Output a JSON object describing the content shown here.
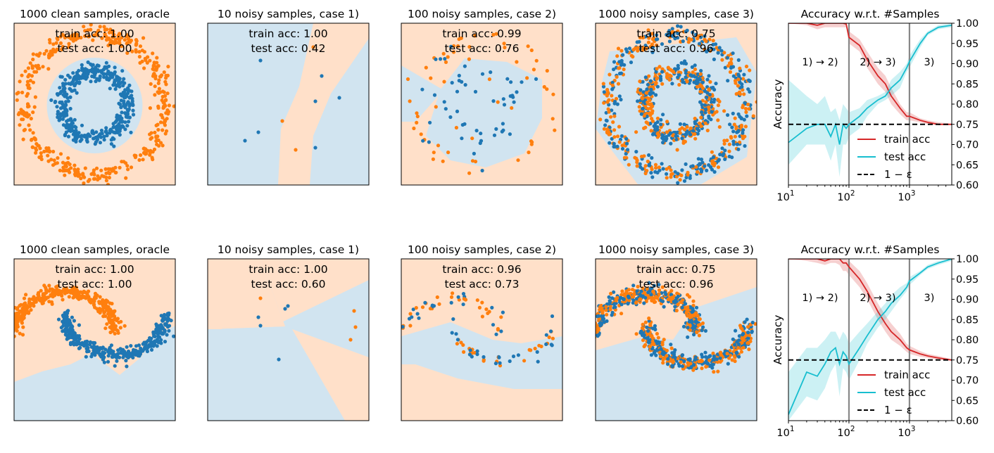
{
  "figure": {
    "colors": {
      "orange": "#ff7f0e",
      "blue": "#1f77b4",
      "region_orange": "#ffe0c9",
      "region_blue": "#d1e4f0",
      "train": "#d62728",
      "test": "#17becf",
      "vline": "#888888"
    }
  },
  "chart_data": [
    {
      "type": "scatter",
      "title": "1000 clean samples, oracle",
      "dataset": "circles",
      "train_acc": "train acc: 1.00",
      "test_acc": "test acc: 1.00",
      "panel_row": 1,
      "panel_col": 1
    },
    {
      "type": "scatter",
      "title": "10 noisy samples, case 1)",
      "dataset": "circles",
      "train_acc": "train acc: 1.00",
      "test_acc": "test acc: 0.42",
      "panel_row": 1,
      "panel_col": 2
    },
    {
      "type": "scatter",
      "title": "100 noisy samples, case 2)",
      "dataset": "circles",
      "train_acc": "train acc: 0.99",
      "test_acc": "test acc: 0.76",
      "panel_row": 1,
      "panel_col": 3
    },
    {
      "type": "scatter",
      "title": "1000 noisy samples, case 3)",
      "dataset": "circles",
      "train_acc": "train acc: 0.75",
      "test_acc": "test acc: 0.96",
      "panel_row": 1,
      "panel_col": 4
    },
    {
      "type": "line",
      "title": "Accuracy w.r.t. #Samples",
      "ylabel": "Accuracy",
      "xscale": "log",
      "xlim": [
        10,
        5000
      ],
      "ylim": [
        0.6,
        1.0
      ],
      "yticks": [
        "1.00",
        "0.95",
        "0.90",
        "0.85",
        "0.80",
        "0.75",
        "0.70",
        "0.65",
        "0.60"
      ],
      "xticks": [
        10,
        100,
        1000
      ],
      "xtick_labels": [
        "10",
        "10",
        "10"
      ],
      "xtick_exps": [
        "1",
        "2",
        "3"
      ],
      "region_labels": [
        "1) → 2)",
        "2) → 3)",
        "3)"
      ],
      "vlines": [
        100,
        1000
      ],
      "hline": 0.75,
      "legend_position": "lower-right",
      "series": [
        {
          "name": "train acc",
          "x": [
            10,
            20,
            30,
            40,
            50,
            60,
            70,
            80,
            90,
            100,
            150,
            200,
            300,
            400,
            500,
            700,
            900,
            1000,
            1500,
            2000,
            3000,
            5000
          ],
          "y": [
            1.0,
            1.0,
            0.995,
            1.0,
            1.0,
            1.0,
            1.0,
            1.0,
            0.998,
            0.965,
            0.945,
            0.91,
            0.87,
            0.85,
            0.82,
            0.79,
            0.77,
            0.77,
            0.76,
            0.755,
            0.75,
            0.75
          ],
          "lo": [
            1.0,
            0.995,
            0.985,
            0.99,
            0.99,
            0.99,
            0.99,
            0.99,
            0.99,
            0.95,
            0.93,
            0.89,
            0.85,
            0.83,
            0.8,
            0.775,
            0.76,
            0.76,
            0.755,
            0.75,
            0.748,
            0.748
          ],
          "hi": [
            1.0,
            1.0,
            1.0,
            1.0,
            1.0,
            1.0,
            1.0,
            1.0,
            1.0,
            0.98,
            0.96,
            0.93,
            0.89,
            0.87,
            0.84,
            0.8,
            0.78,
            0.78,
            0.765,
            0.76,
            0.755,
            0.752
          ]
        },
        {
          "name": "test acc",
          "x": [
            10,
            20,
            30,
            40,
            50,
            60,
            70,
            80,
            90,
            100,
            150,
            200,
            300,
            400,
            500,
            700,
            900,
            1000,
            1500,
            2000,
            3000,
            5000
          ],
          "y": [
            0.705,
            0.74,
            0.75,
            0.75,
            0.72,
            0.75,
            0.7,
            0.75,
            0.74,
            0.75,
            0.77,
            0.79,
            0.81,
            0.82,
            0.84,
            0.86,
            0.89,
            0.905,
            0.95,
            0.975,
            0.99,
            0.995
          ],
          "lo": [
            0.65,
            0.7,
            0.7,
            0.7,
            0.66,
            0.7,
            0.62,
            0.7,
            0.7,
            0.72,
            0.74,
            0.77,
            0.8,
            0.81,
            0.82,
            0.84,
            0.88,
            0.89,
            0.94,
            0.97,
            0.985,
            0.99
          ],
          "hi": [
            0.86,
            0.82,
            0.8,
            0.82,
            0.78,
            0.79,
            0.76,
            0.8,
            0.79,
            0.78,
            0.79,
            0.81,
            0.82,
            0.83,
            0.86,
            0.88,
            0.9,
            0.92,
            0.96,
            0.98,
            0.995,
            1.0
          ]
        }
      ],
      "hline_label": "1 − ε",
      "panel_row": 1,
      "panel_col": 5
    },
    {
      "type": "scatter",
      "title": "1000 clean samples, oracle",
      "dataset": "moons",
      "train_acc": "train acc: 1.00",
      "test_acc": "test acc: 1.00",
      "panel_row": 2,
      "panel_col": 1
    },
    {
      "type": "scatter",
      "title": "10 noisy samples, case 1)",
      "dataset": "moons",
      "train_acc": "train acc: 1.00",
      "test_acc": "test acc: 0.60",
      "panel_row": 2,
      "panel_col": 2
    },
    {
      "type": "scatter",
      "title": "100 noisy samples, case 2)",
      "dataset": "moons",
      "train_acc": "train acc: 0.96",
      "test_acc": "test acc: 0.73",
      "panel_row": 2,
      "panel_col": 3
    },
    {
      "type": "scatter",
      "title": "1000 noisy samples, case 3)",
      "dataset": "moons",
      "train_acc": "train acc: 0.75",
      "test_acc": "test acc: 0.96",
      "panel_row": 2,
      "panel_col": 4
    },
    {
      "type": "line",
      "title": "Accuracy w.r.t. #Samples",
      "ylabel": "Accuracy",
      "xscale": "log",
      "xlim": [
        10,
        5000
      ],
      "ylim": [
        0.6,
        1.0
      ],
      "yticks": [
        "1.00",
        "0.95",
        "0.90",
        "0.85",
        "0.80",
        "0.75",
        "0.70",
        "0.65",
        "0.60"
      ],
      "xticks": [
        10,
        100,
        1000
      ],
      "xtick_labels": [
        "10",
        "10",
        "10"
      ],
      "xtick_exps": [
        "1",
        "2",
        "3"
      ],
      "region_labels": [
        "1) → 2)",
        "2) → 3)",
        "3)"
      ],
      "vlines": [
        100,
        1000
      ],
      "hline": 0.75,
      "legend_position": "lower-right",
      "series": [
        {
          "name": "train acc",
          "x": [
            10,
            20,
            30,
            40,
            50,
            60,
            70,
            80,
            90,
            100,
            150,
            200,
            300,
            400,
            500,
            700,
            900,
            1000,
            1500,
            2000,
            3000,
            5000
          ],
          "y": [
            1.0,
            1.0,
            1.0,
            0.995,
            1.0,
            1.0,
            1.0,
            0.99,
            0.99,
            0.98,
            0.95,
            0.92,
            0.87,
            0.84,
            0.82,
            0.8,
            0.78,
            0.775,
            0.765,
            0.76,
            0.755,
            0.75
          ],
          "lo": [
            1.0,
            0.995,
            0.99,
            0.985,
            0.99,
            0.99,
            0.985,
            0.97,
            0.97,
            0.96,
            0.93,
            0.9,
            0.85,
            0.82,
            0.8,
            0.785,
            0.77,
            0.765,
            0.758,
            0.755,
            0.75,
            0.748
          ],
          "hi": [
            1.0,
            1.0,
            1.0,
            1.0,
            1.0,
            1.0,
            1.0,
            1.0,
            1.0,
            0.995,
            0.97,
            0.94,
            0.89,
            0.86,
            0.84,
            0.815,
            0.79,
            0.785,
            0.772,
            0.765,
            0.76,
            0.752
          ]
        },
        {
          "name": "test acc",
          "x": [
            10,
            20,
            30,
            40,
            50,
            60,
            70,
            80,
            90,
            100,
            150,
            200,
            300,
            400,
            500,
            700,
            900,
            1000,
            1500,
            2000,
            3000,
            5000
          ],
          "y": [
            0.615,
            0.72,
            0.71,
            0.74,
            0.77,
            0.78,
            0.74,
            0.77,
            0.76,
            0.74,
            0.78,
            0.81,
            0.85,
            0.87,
            0.89,
            0.91,
            0.93,
            0.945,
            0.965,
            0.98,
            0.99,
            1.0
          ],
          "lo": [
            0.6,
            0.66,
            0.65,
            0.68,
            0.72,
            0.74,
            0.66,
            0.73,
            0.72,
            0.7,
            0.75,
            0.79,
            0.83,
            0.85,
            0.87,
            0.9,
            0.92,
            0.935,
            0.96,
            0.975,
            0.985,
            0.995
          ],
          "hi": [
            0.72,
            0.78,
            0.78,
            0.8,
            0.82,
            0.82,
            0.8,
            0.82,
            0.81,
            0.79,
            0.82,
            0.84,
            0.87,
            0.89,
            0.91,
            0.93,
            0.94,
            0.955,
            0.97,
            0.985,
            0.995,
            1.0
          ]
        }
      ],
      "hline_label": "1 − ε",
      "panel_row": 2,
      "panel_col": 5
    }
  ]
}
